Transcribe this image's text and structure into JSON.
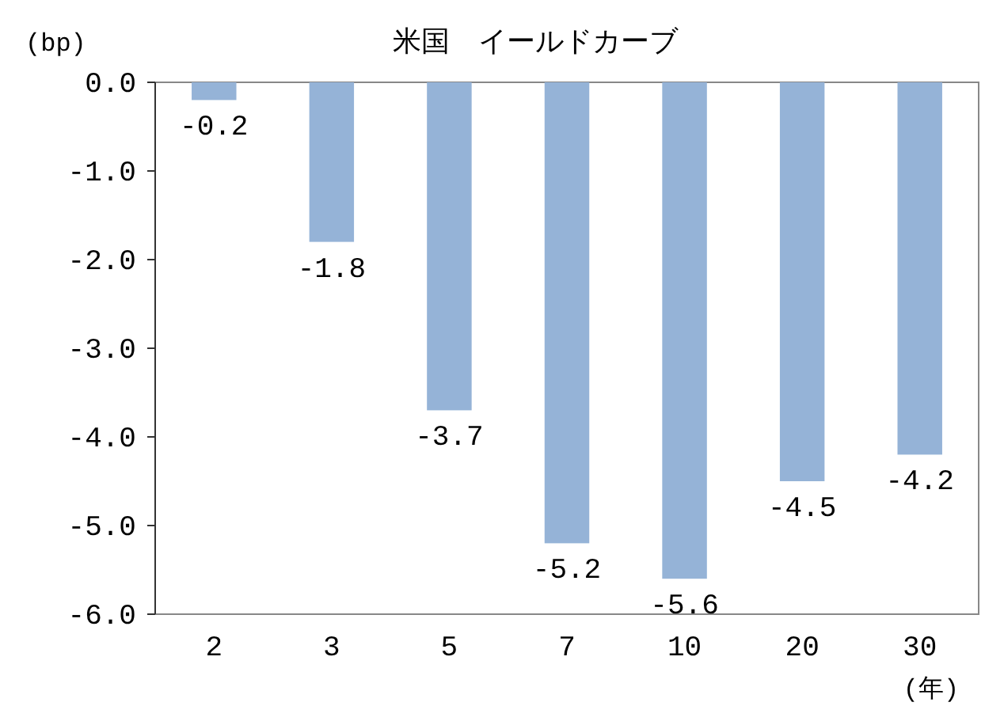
{
  "chart_data": {
    "type": "bar",
    "title": "米国　イールドカーブ",
    "ylabel": "(bp)",
    "xlabel": "(年)",
    "categories": [
      "2",
      "3",
      "5",
      "7",
      "10",
      "20",
      "30"
    ],
    "values": [
      -0.2,
      -1.8,
      -3.7,
      -5.2,
      -5.6,
      -4.5,
      -4.2
    ],
    "color": "#95b3d7",
    "ylim": [
      -6,
      0
    ],
    "yticks": [
      {
        "value": 0,
        "label": "0.0"
      },
      {
        "value": -1,
        "label": "-1.0"
      },
      {
        "value": -2,
        "label": "-2.0"
      },
      {
        "value": -3,
        "label": "-3.0"
      },
      {
        "value": -4,
        "label": "-4.0"
      },
      {
        "value": -5,
        "label": "-5.0"
      },
      {
        "value": -6,
        "label": "-6.0"
      }
    ],
    "data_labels": true
  }
}
